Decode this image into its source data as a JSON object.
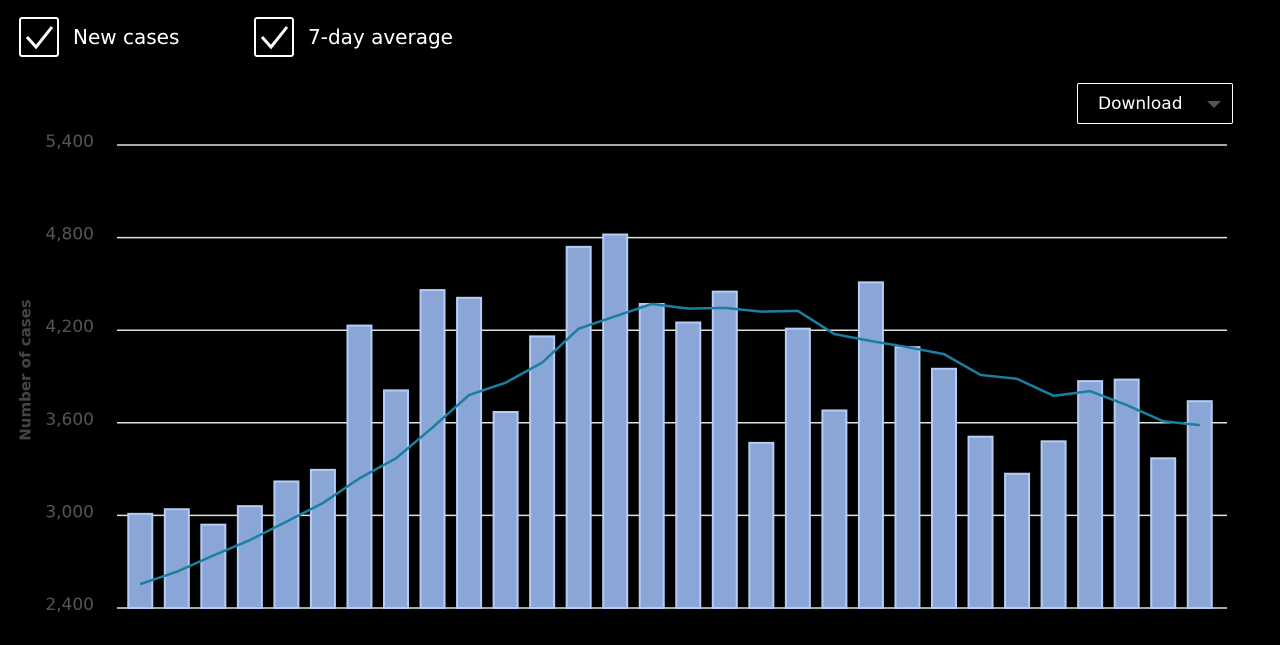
{
  "chart_data": {
    "type": "bar",
    "y_label": "Number of cases",
    "ylim": [
      2400,
      5400
    ],
    "yticks": [
      {
        "value": 2400,
        "label": "2,400"
      },
      {
        "value": 3000,
        "label": "3,000"
      },
      {
        "value": 3600,
        "label": "3,600"
      },
      {
        "value": 4200,
        "label": "4,200"
      },
      {
        "value": 4800,
        "label": "4,800"
      },
      {
        "value": 5400,
        "label": "5,400"
      }
    ],
    "grid": true,
    "series": [
      {
        "name": "New cases",
        "type": "bar",
        "color": "#8aa6d6",
        "values": [
          3010,
          3040,
          2940,
          3060,
          3220,
          3295,
          4230,
          3810,
          4460,
          4410,
          3670,
          4160,
          4740,
          4820,
          4370,
          4250,
          4450,
          3470,
          4210,
          3680,
          4510,
          4090,
          3950,
          3510,
          3270,
          3480,
          3870,
          3880,
          3370,
          3740
        ]
      },
      {
        "name": "7-day average",
        "type": "line",
        "color": "#1a7fa0",
        "values": [
          2555,
          2635,
          2740,
          2840,
          2960,
          3080,
          3240,
          3370,
          3570,
          3780,
          3860,
          3990,
          4210,
          4290,
          4370,
          4340,
          4345,
          4320,
          4325,
          4175,
          4130,
          4090,
          4045,
          3910,
          3885,
          3775,
          3805,
          3715,
          3610,
          3585
        ]
      }
    ]
  },
  "controls": {
    "download": "Download"
  }
}
